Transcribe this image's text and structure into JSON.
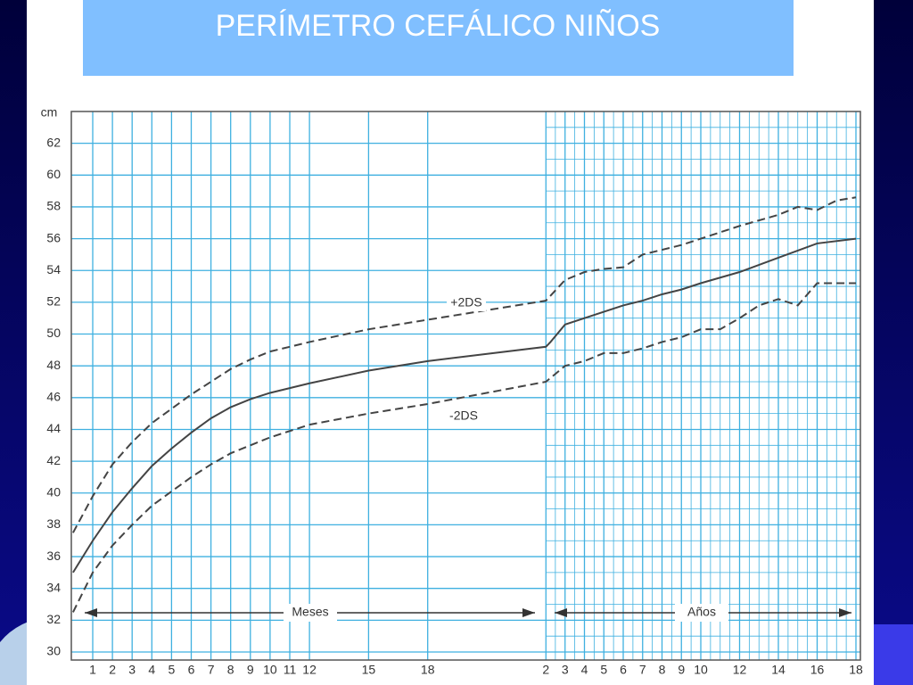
{
  "chart_data": {
    "type": "line",
    "title": "PERÍMETRO CEFÁLICO NIÑOS",
    "y_label": "cm",
    "annotations": {
      "meses": "Meses",
      "anos": "Años"
    },
    "ylim": [
      30,
      64
    ],
    "yticks": [
      30,
      32,
      34,
      36,
      38,
      40,
      42,
      44,
      46,
      48,
      50,
      52,
      54,
      56,
      58,
      60,
      62
    ],
    "xlim": [
      0,
      216
    ],
    "xticks": [
      1,
      2,
      3,
      4,
      5,
      6,
      7,
      8,
      9,
      10,
      11,
      12,
      15,
      18,
      {
        "value": 24,
        "label": "2"
      },
      {
        "value": 36,
        "label": "3"
      },
      {
        "value": 48,
        "label": "4"
      },
      {
        "value": 60,
        "label": "5"
      },
      {
        "value": 72,
        "label": "6"
      },
      {
        "value": 84,
        "label": "7"
      },
      {
        "value": 96,
        "label": "8"
      },
      {
        "value": 108,
        "label": "9"
      },
      {
        "value": 120,
        "label": "10"
      },
      {
        "value": 144,
        "label": "12"
      },
      {
        "value": 168,
        "label": "14"
      },
      {
        "value": 192,
        "label": "16"
      },
      {
        "value": 216,
        "label": "18"
      }
    ],
    "grid": true,
    "series": [
      {
        "name": "+2DS",
        "color": "#444444",
        "style": "dashed",
        "x": [
          0,
          1,
          2,
          3,
          4,
          5,
          6,
          7,
          8,
          9,
          10,
          11,
          12,
          15,
          18,
          24,
          36,
          48,
          60,
          72,
          84,
          96,
          108,
          120,
          144,
          168,
          180,
          192,
          204,
          216
        ],
        "values": [
          37.5,
          39.8,
          41.8,
          43.2,
          44.4,
          45.3,
          46.2,
          47,
          47.8,
          48.4,
          48.9,
          49.2,
          49.5,
          50.3,
          50.9,
          52.1,
          53.4,
          53.9,
          54.1,
          54.2,
          55.0,
          55.3,
          55.6,
          56.0,
          56.8,
          57.5,
          58.0,
          57.8,
          58.4,
          58.6
        ]
      },
      {
        "color": "#444444",
        "style": "solid",
        "x": [
          0,
          1,
          2,
          3,
          4,
          5,
          6,
          7,
          8,
          9,
          10,
          11,
          12,
          15,
          18,
          24,
          27,
          36,
          48,
          60,
          72,
          84,
          96,
          108,
          120,
          144,
          168,
          192,
          216
        ],
        "values": [
          35,
          37,
          38.8,
          40.3,
          41.7,
          42.8,
          43.8,
          44.7,
          45.4,
          45.9,
          46.3,
          46.6,
          46.9,
          47.7,
          48.3,
          49.2,
          49.5,
          50.6,
          51.0,
          51.4,
          51.8,
          52.1,
          52.5,
          52.8,
          53.2,
          53.9,
          54.8,
          55.7,
          56.0
        ]
      },
      {
        "name": "-2DS",
        "color": "#444444",
        "style": "dashed",
        "x": [
          0,
          1,
          2,
          3,
          4,
          5,
          6,
          7,
          8,
          9,
          10,
          11,
          12,
          15,
          18,
          24,
          36,
          48,
          60,
          72,
          84,
          96,
          108,
          120,
          132,
          144,
          156,
          168,
          180,
          192,
          216
        ],
        "values": [
          32.5,
          35,
          36.7,
          38,
          39.2,
          40.1,
          41,
          41.8,
          42.5,
          43,
          43.5,
          43.9,
          44.3,
          45,
          45.6,
          47,
          48,
          48.3,
          48.8,
          48.8,
          49.1,
          49.5,
          49.8,
          50.3,
          50.3,
          51,
          51.8,
          52.2,
          51.8,
          53.2,
          53.2
        ]
      }
    ]
  }
}
